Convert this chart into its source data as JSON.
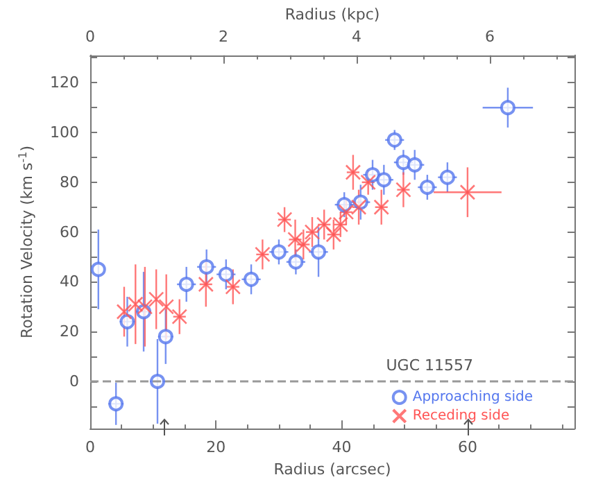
{
  "chart_data": {
    "type": "scatter",
    "xlabel": "Radius (arcsec)",
    "x2label": "Radius (kpc)",
    "ylabel": "Rotation Velocity (km s$^{-1}$)",
    "legend_title": "UGC 11557",
    "legend": "bottom right",
    "grid": false,
    "xlim": [
      0,
      77
    ],
    "xticks": [
      0,
      20,
      40,
      60
    ],
    "x2lim": [
      0,
      7.27
    ],
    "x2ticks": [
      0,
      2,
      4,
      6
    ],
    "ylim": [
      -19,
      131
    ],
    "yticks": [
      {
        "value": -10,
        "label": null
      },
      0,
      {
        "value": 10,
        "label": null
      },
      20,
      {
        "value": 30,
        "label": null
      },
      40,
      {
        "value": 50,
        "label": null
      },
      60,
      {
        "value": 70,
        "label": null
      },
      80,
      {
        "value": 90,
        "label": null
      },
      100,
      {
        "value": 110,
        "label": null
      },
      120,
      {
        "value": 130,
        "label": null
      }
    ],
    "ref_lines": [
      {
        "axis": "y",
        "value": 0,
        "color": "#999999",
        "line_style": "dashed"
      }
    ],
    "series": [
      {
        "name": "Approaching side",
        "color": "#5577ee",
        "marker": "circle",
        "x": [
          1.3,
          4.1,
          5.9,
          8.5,
          10.7,
          12.0,
          15.3,
          18.5,
          21.6,
          25.6,
          30.0,
          32.7,
          36.3,
          40.4,
          43.0,
          44.9,
          46.7,
          48.4,
          49.8,
          51.6,
          53.6,
          56.8,
          66.4
        ],
        "values": [
          45,
          -9,
          24,
          28,
          0,
          18,
          39,
          46,
          43,
          41,
          52,
          48,
          52,
          71,
          72,
          83,
          81,
          97,
          88,
          87,
          78,
          82,
          110
        ],
        "errors": [
          16,
          8.5,
          10,
          16,
          17,
          11,
          7,
          7,
          6,
          6,
          5,
          5,
          10,
          5,
          7,
          6,
          6,
          4,
          5,
          6,
          5,
          6,
          8
        ],
        "xerrors": [
          null,
          1.2,
          1.2,
          1.2,
          1.2,
          1.2,
          1.5,
          1.5,
          1.5,
          1.5,
          1.5,
          1.5,
          1.5,
          1.5,
          1.5,
          1.5,
          1.5,
          1.5,
          1.5,
          1.5,
          1.5,
          1.5,
          4
        ]
      },
      {
        "name": "Receding side",
        "color": "#ff5555",
        "marker": "cross",
        "x": [
          5.4,
          7.2,
          8.7,
          10.5,
          12.1,
          14.2,
          18.4,
          22.7,
          27.4,
          30.9,
          32.6,
          33.9,
          35.3,
          37.2,
          38.7,
          39.8,
          40.7,
          41.8,
          42.7,
          44.2,
          46.3,
          49.8,
          60.0
        ],
        "values": [
          28,
          31,
          30,
          33,
          30,
          26,
          39,
          38,
          51,
          65,
          57,
          55,
          60,
          63,
          59,
          63,
          68,
          84,
          70,
          80,
          70,
          77,
          76
        ],
        "errors": [
          10,
          16,
          16,
          12,
          13,
          7,
          9,
          7,
          6,
          5,
          8,
          6,
          6,
          6,
          6,
          5,
          5,
          7,
          7,
          5,
          7,
          7,
          10
        ],
        "xerrors": [
          null,
          null,
          null,
          null,
          null,
          1,
          1,
          1,
          1,
          1,
          1,
          1,
          1,
          1,
          1,
          1,
          1,
          1,
          1,
          1,
          1,
          1,
          5.4
        ]
      }
    ]
  }
}
